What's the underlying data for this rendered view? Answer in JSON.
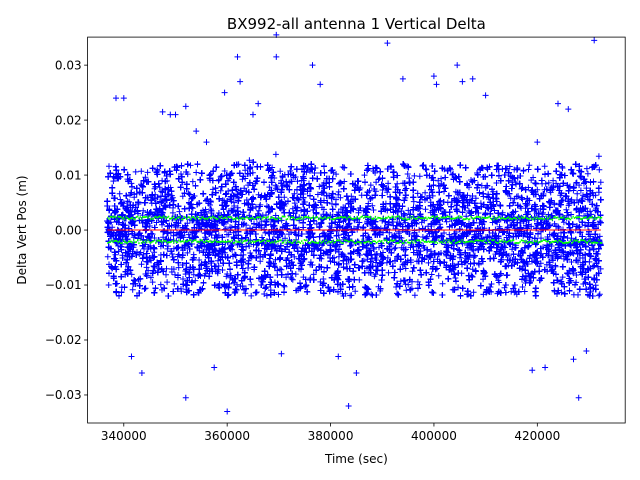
{
  "chart_data": {
    "type": "scatter",
    "title": "BX992-all antenna 1 Vertical Delta",
    "xlabel": "Time (sec)",
    "ylabel": "Delta Vert Pos (m)",
    "xlim": [
      333000,
      437000
    ],
    "ylim": [
      -0.0351,
      0.0351
    ],
    "x_ticks": [
      340000,
      360000,
      380000,
      400000,
      420000
    ],
    "x_tick_labels": [
      "340000",
      "360000",
      "380000",
      "400000",
      "420000"
    ],
    "y_ticks": [
      -0.03,
      -0.02,
      -0.01,
      0.0,
      0.01,
      0.02,
      0.03
    ],
    "y_tick_labels": [
      "−0.03",
      "−0.02",
      "−0.01",
      "0.00",
      "0.01",
      "0.02",
      "0.03"
    ],
    "grid": false,
    "legend": "none",
    "series": [
      {
        "marker": "+",
        "color": "#0000ff",
        "x_range": [
          336800,
          432300
        ],
        "typical_band": [
          -0.012,
          0.012
        ],
        "envelope": [
          {
            "x": 337000,
            "upper": 0.017,
            "lower": -0.017
          },
          {
            "x": 342000,
            "upper": 0.02,
            "lower": -0.022
          },
          {
            "x": 347000,
            "upper": 0.021,
            "lower": -0.018
          },
          {
            "x": 352000,
            "upper": 0.018,
            "lower": -0.027
          },
          {
            "x": 357000,
            "upper": 0.016,
            "lower": -0.02
          },
          {
            "x": 362000,
            "upper": 0.024,
            "lower": -0.022
          },
          {
            "x": 367000,
            "upper": 0.022,
            "lower": -0.02
          },
          {
            "x": 372000,
            "upper": 0.023,
            "lower": -0.019
          },
          {
            "x": 377000,
            "upper": 0.024,
            "lower": -0.018
          },
          {
            "x": 382000,
            "upper": 0.02,
            "lower": -0.021
          },
          {
            "x": 387000,
            "upper": 0.021,
            "lower": -0.019
          },
          {
            "x": 392000,
            "upper": 0.024,
            "lower": -0.021
          },
          {
            "x": 397000,
            "upper": 0.022,
            "lower": -0.019
          },
          {
            "x": 400000,
            "upper": 0.028,
            "lower": -0.018
          },
          {
            "x": 405000,
            "upper": 0.02,
            "lower": -0.019
          },
          {
            "x": 410000,
            "upper": 0.021,
            "lower": -0.021
          },
          {
            "x": 415000,
            "upper": 0.018,
            "lower": -0.017
          },
          {
            "x": 420000,
            "upper": 0.018,
            "lower": -0.02
          },
          {
            "x": 425000,
            "upper": 0.02,
            "lower": -0.019
          },
          {
            "x": 429000,
            "upper": 0.02,
            "lower": -0.023
          },
          {
            "x": 432000,
            "upper": 0.023,
            "lower": -0.019
          }
        ],
        "outliers": [
          [
            338500,
            0.024
          ],
          [
            340000,
            0.024
          ],
          [
            341500,
            -0.023
          ],
          [
            343500,
            -0.026
          ],
          [
            347500,
            0.0215
          ],
          [
            349000,
            0.021
          ],
          [
            350000,
            0.021
          ],
          [
            352000,
            0.0225
          ],
          [
            352000,
            -0.0305
          ],
          [
            354000,
            0.018
          ],
          [
            356000,
            0.016
          ],
          [
            357500,
            -0.025
          ],
          [
            359500,
            0.025
          ],
          [
            360000,
            -0.033
          ],
          [
            362000,
            0.0315
          ],
          [
            362500,
            0.027
          ],
          [
            365000,
            0.021
          ],
          [
            366000,
            0.023
          ],
          [
            369500,
            0.0355
          ],
          [
            369500,
            0.0315
          ],
          [
            370500,
            -0.0225
          ],
          [
            376500,
            0.03
          ],
          [
            378000,
            0.0265
          ],
          [
            381500,
            -0.023
          ],
          [
            383500,
            -0.032
          ],
          [
            385000,
            -0.026
          ],
          [
            391000,
            0.034
          ],
          [
            394000,
            0.0275
          ],
          [
            400000,
            0.028
          ],
          [
            400500,
            0.0265
          ],
          [
            404500,
            0.03
          ],
          [
            405500,
            0.027
          ],
          [
            407500,
            0.0275
          ],
          [
            410000,
            0.0245
          ],
          [
            419000,
            -0.0255
          ],
          [
            420000,
            0.016
          ],
          [
            421500,
            -0.025
          ],
          [
            424000,
            0.023
          ],
          [
            426000,
            0.022
          ],
          [
            427000,
            -0.0235
          ],
          [
            428000,
            -0.0305
          ],
          [
            429500,
            -0.022
          ],
          [
            431000,
            0.0345
          ]
        ]
      },
      {
        "marker": "line",
        "color": "#ff0000",
        "x_range": [
          336800,
          432300
        ],
        "y": 0.0
      },
      {
        "marker": ".",
        "color": "#00ff00",
        "x_range": [
          336800,
          432300
        ],
        "y_upper": 0.0022,
        "y_lower": -0.0021
      }
    ]
  }
}
